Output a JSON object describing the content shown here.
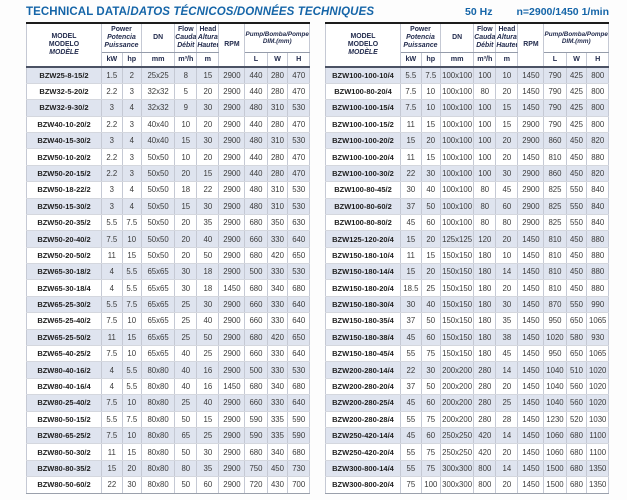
{
  "page": {
    "title_plain": "TECHNICAL DATA/",
    "title_italic": "DATOS TÉCNICOS/DONNÉES TECHNIQUES",
    "frequency": "50 Hz",
    "speed": "n=2900/1450 1/min"
  },
  "colors": {
    "accent_blue": "#1565a8",
    "header_text": "#232c4e",
    "row_stripe": "#dfe4ef",
    "top_border": "#1c1c1c"
  },
  "header": {
    "model_en": "MODEL",
    "model_es": "MODELO",
    "model_fr": "MODÈLE",
    "power_en": "Power",
    "power_es": "Potencia",
    "power_fr": "Puissance",
    "unit_kw": "kW",
    "unit_hp": "hp",
    "dn": "DN",
    "unit_mm": "mm",
    "flow_en": "Flow",
    "flow_es": "Caudal",
    "flow_fr": "Débit",
    "unit_flow": "m³/h",
    "head_en": "Head",
    "head_es": "Altura",
    "head_fr": "Hauteur",
    "unit_m": "m",
    "rpm": "RPM",
    "dim_title": "Pump/Bomba/Pompe",
    "dim_sub": "DIM.(mm)",
    "unit_l": "L",
    "unit_w": "W",
    "unit_h": "H"
  },
  "tables": {
    "left": {
      "rows": [
        [
          "BZW25-8-15/2",
          "1.5",
          "2",
          "25x25",
          "8",
          "15",
          "2900",
          "440",
          "280",
          "470"
        ],
        [
          "BZW32-5-20/2",
          "2.2",
          "3",
          "32x32",
          "5",
          "20",
          "2900",
          "440",
          "280",
          "470"
        ],
        [
          "BZW32-9-30/2",
          "3",
          "4",
          "32x32",
          "9",
          "30",
          "2900",
          "480",
          "310",
          "530"
        ],
        [
          "BZW40-10-20/2",
          "2.2",
          "3",
          "40x40",
          "10",
          "20",
          "2900",
          "440",
          "280",
          "470"
        ],
        [
          "BZW40-15-30/2",
          "3",
          "4",
          "40x40",
          "15",
          "30",
          "2900",
          "480",
          "310",
          "530"
        ],
        [
          "BZW50-10-20/2",
          "2.2",
          "3",
          "50x50",
          "10",
          "20",
          "2900",
          "440",
          "280",
          "470"
        ],
        [
          "BZW50-20-15/2",
          "2.2",
          "3",
          "50x50",
          "20",
          "15",
          "2900",
          "440",
          "280",
          "470"
        ],
        [
          "BZW50-18-22/2",
          "3",
          "4",
          "50x50",
          "18",
          "22",
          "2900",
          "480",
          "310",
          "530"
        ],
        [
          "BZW50-15-30/2",
          "3",
          "4",
          "50x50",
          "15",
          "30",
          "2900",
          "480",
          "310",
          "530"
        ],
        [
          "BZW50-20-35/2",
          "5.5",
          "7.5",
          "50x50",
          "20",
          "35",
          "2900",
          "680",
          "350",
          "630"
        ],
        [
          "BZW50-20-40/2",
          "7.5",
          "10",
          "50x50",
          "20",
          "40",
          "2900",
          "660",
          "330",
          "640"
        ],
        [
          "BZW50-20-50/2",
          "11",
          "15",
          "50x50",
          "20",
          "50",
          "2900",
          "680",
          "420",
          "650"
        ],
        [
          "BZW65-30-18/2",
          "4",
          "5.5",
          "65x65",
          "30",
          "18",
          "2900",
          "500",
          "330",
          "530"
        ],
        [
          "BZW65-30-18/4",
          "4",
          "5.5",
          "65x65",
          "30",
          "18",
          "1450",
          "680",
          "340",
          "680"
        ],
        [
          "BZW65-25-30/2",
          "5.5",
          "7.5",
          "65x65",
          "25",
          "30",
          "2900",
          "660",
          "330",
          "640"
        ],
        [
          "BZW65-25-40/2",
          "7.5",
          "10",
          "65x65",
          "25",
          "40",
          "2900",
          "660",
          "330",
          "640"
        ],
        [
          "BZW65-25-50/2",
          "11",
          "15",
          "65x65",
          "25",
          "50",
          "2900",
          "680",
          "420",
          "650"
        ],
        [
          "BZW65-40-25/2",
          "7.5",
          "10",
          "65x65",
          "40",
          "25",
          "2900",
          "660",
          "330",
          "640"
        ],
        [
          "BZW80-40-16/2",
          "4",
          "5.5",
          "80x80",
          "40",
          "16",
          "2900",
          "500",
          "330",
          "530"
        ],
        [
          "BZW80-40-16/4",
          "4",
          "5.5",
          "80x80",
          "40",
          "16",
          "1450",
          "680",
          "340",
          "680"
        ],
        [
          "BZW80-25-40/2",
          "7.5",
          "10",
          "80x80",
          "25",
          "40",
          "2900",
          "660",
          "330",
          "640"
        ],
        [
          "BZW80-50-15/2",
          "5.5",
          "7.5",
          "80x80",
          "50",
          "15",
          "2900",
          "590",
          "335",
          "590"
        ],
        [
          "BZW80-65-25/2",
          "7.5",
          "10",
          "80x80",
          "65",
          "25",
          "2900",
          "590",
          "335",
          "590"
        ],
        [
          "BZW80-50-30/2",
          "11",
          "15",
          "80x80",
          "50",
          "30",
          "2900",
          "680",
          "340",
          "680"
        ],
        [
          "BZW80-80-35/2",
          "15",
          "20",
          "80x80",
          "80",
          "35",
          "2900",
          "750",
          "450",
          "730"
        ],
        [
          "BZW80-50-60/2",
          "22",
          "30",
          "80x80",
          "50",
          "60",
          "2900",
          "720",
          "430",
          "700"
        ]
      ]
    },
    "right": {
      "rows": [
        [
          "BZW100-100-10/4",
          "5.5",
          "7.5",
          "100x100",
          "100",
          "10",
          "1450",
          "790",
          "425",
          "800"
        ],
        [
          "BZW100-80-20/4",
          "7.5",
          "10",
          "100x100",
          "80",
          "20",
          "1450",
          "790",
          "425",
          "800"
        ],
        [
          "BZW100-100-15/4",
          "7.5",
          "10",
          "100x100",
          "100",
          "15",
          "1450",
          "790",
          "425",
          "800"
        ],
        [
          "BZW100-100-15/2",
          "11",
          "15",
          "100x100",
          "100",
          "15",
          "2900",
          "790",
          "425",
          "800"
        ],
        [
          "BZW100-100-20/2",
          "15",
          "20",
          "100x100",
          "100",
          "20",
          "2900",
          "860",
          "450",
          "820"
        ],
        [
          "BZW100-100-20/4",
          "11",
          "15",
          "100x100",
          "100",
          "20",
          "1450",
          "810",
          "450",
          "880"
        ],
        [
          "BZW100-100-30/2",
          "22",
          "30",
          "100x100",
          "100",
          "30",
          "2900",
          "860",
          "450",
          "820"
        ],
        [
          "BZW100-80-45/2",
          "30",
          "40",
          "100x100",
          "80",
          "45",
          "2900",
          "825",
          "550",
          "840"
        ],
        [
          "BZW100-80-60/2",
          "37",
          "50",
          "100x100",
          "80",
          "60",
          "2900",
          "825",
          "550",
          "840"
        ],
        [
          "BZW100-80-80/2",
          "45",
          "60",
          "100x100",
          "80",
          "80",
          "2900",
          "825",
          "550",
          "840"
        ],
        [
          "BZW125-120-20/4",
          "15",
          "20",
          "125x125",
          "120",
          "20",
          "1450",
          "810",
          "450",
          "880"
        ],
        [
          "BZW150-180-10/4",
          "11",
          "15",
          "150x150",
          "180",
          "10",
          "1450",
          "810",
          "450",
          "880"
        ],
        [
          "BZW150-180-14/4",
          "15",
          "20",
          "150x150",
          "180",
          "14",
          "1450",
          "810",
          "450",
          "880"
        ],
        [
          "BZW150-180-20/4",
          "18.5",
          "25",
          "150x150",
          "180",
          "20",
          "1450",
          "810",
          "450",
          "880"
        ],
        [
          "BZW150-180-30/4",
          "30",
          "40",
          "150x150",
          "180",
          "30",
          "1450",
          "870",
          "550",
          "990"
        ],
        [
          "BZW150-180-35/4",
          "37",
          "50",
          "150x150",
          "180",
          "35",
          "1450",
          "950",
          "650",
          "1065"
        ],
        [
          "BZW150-180-38/4",
          "45",
          "60",
          "150x150",
          "180",
          "38",
          "1450",
          "1020",
          "580",
          "930"
        ],
        [
          "BZW150-180-45/4",
          "55",
          "75",
          "150x150",
          "180",
          "45",
          "1450",
          "950",
          "650",
          "1065"
        ],
        [
          "BZW200-280-14/4",
          "22",
          "30",
          "200x200",
          "280",
          "14",
          "1450",
          "1040",
          "510",
          "1020"
        ],
        [
          "BZW200-280-20/4",
          "37",
          "50",
          "200x200",
          "280",
          "20",
          "1450",
          "1040",
          "560",
          "1020"
        ],
        [
          "BZW200-280-25/4",
          "45",
          "60",
          "200x200",
          "280",
          "25",
          "1450",
          "1040",
          "560",
          "1020"
        ],
        [
          "BZW200-280-28/4",
          "55",
          "75",
          "200x200",
          "280",
          "28",
          "1450",
          "1230",
          "520",
          "1030"
        ],
        [
          "BZW250-420-14/4",
          "45",
          "60",
          "250x250",
          "420",
          "14",
          "1450",
          "1060",
          "680",
          "1100"
        ],
        [
          "BZW250-420-20/4",
          "55",
          "75",
          "250x250",
          "420",
          "20",
          "1450",
          "1060",
          "680",
          "1100"
        ],
        [
          "BZW300-800-14/4",
          "55",
          "75",
          "300x300",
          "800",
          "14",
          "1450",
          "1500",
          "680",
          "1350"
        ],
        [
          "BZW300-800-20/4",
          "75",
          "100",
          "300x300",
          "800",
          "20",
          "1450",
          "1500",
          "680",
          "1350"
        ]
      ]
    }
  }
}
